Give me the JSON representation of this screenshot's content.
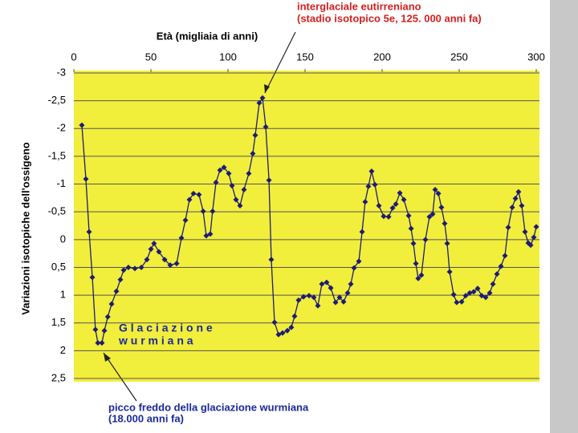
{
  "chart_data": {
    "type": "line",
    "xlabel": "Età (migliaia di anni)",
    "ylabel": "Variazioni isotopiche dell'ossigeno",
    "annotations": [
      {
        "lines": [
          "interglaciale eutirreniano",
          "(stadio isotopico 5e, 125. 000 anni fa)"
        ],
        "color": "#d42020"
      },
      {
        "lines": [
          "picco freddo della glaciazione wurmiana",
          "(18.000 anni fa)"
        ],
        "color": "#1a2a9a"
      },
      {
        "lines": [
          "G l a c i a z i o n e",
          "w u r m i a n a"
        ],
        "color": "#1a2a9a"
      }
    ],
    "x_axis_position": "top",
    "y_inverted": true,
    "xlim": [
      0,
      300
    ],
    "xticks": [
      0,
      50,
      100,
      150,
      200,
      250,
      300
    ],
    "ylim": [
      -3,
      2.5
    ],
    "yticks": [
      {
        "value": -3,
        "label": "-3"
      },
      {
        "value": -2.5,
        "label": "-2,5"
      },
      {
        "value": -2,
        "label": "-2"
      },
      {
        "value": -1.5,
        "label": "-1,5"
      },
      {
        "value": -1,
        "label": "-1"
      },
      {
        "value": -0.5,
        "label": "-0,5"
      },
      0,
      {
        "value": 0.5,
        "label": "0,5"
      },
      1,
      {
        "value": 1.5,
        "label": "1,5"
      },
      2,
      {
        "value": 2.5,
        "label": "2,5"
      }
    ],
    "grid": true,
    "background": "#f2ee3c",
    "series": [
      {
        "color": "#1c1c78",
        "x": [
          5.2,
          7.8,
          9.9,
          12,
          14,
          15.6,
          18.2,
          19.8,
          22,
          24.5,
          27.6,
          30.2,
          32.3,
          35.4,
          39.6,
          43.8,
          47.4,
          50,
          52,
          55.2,
          58.9,
          62.5,
          66.7,
          69.8,
          72.4,
          75,
          77.6,
          81.2,
          83.9,
          85.9,
          88.5,
          90,
          92.2,
          94.8,
          97.4,
          100.5,
          102.6,
          105.2,
          107.8,
          110.4,
          113.5,
          116.1,
          117.7,
          120.3,
          122.4,
          124.5,
          126.6,
          128.1,
          130.2,
          132.8,
          135.4,
          138.5,
          141.1,
          143.2,
          145.8,
          149,
          152.6,
          155.7,
          158.3,
          160.9,
          164,
          166.7,
          169.8,
          172.4,
          175,
          177.6,
          179.7,
          181.8,
          184.9,
          187,
          189,
          191.1,
          193.2,
          195.3,
          197.9,
          201,
          204.2,
          206.8,
          208.9,
          211.5,
          214.1,
          217.2,
          218.8,
          220.3,
          221.9,
          223.4,
          225.5,
          228.1,
          230.7,
          232.8,
          234.4,
          236.5,
          238.5,
          240.6,
          242.2,
          243.8,
          246.4,
          248.4,
          251.6,
          254.2,
          256.8,
          259.4,
          262,
          264.6,
          267.2,
          269.8,
          271.9,
          274.5,
          277.1,
          279.7,
          281.8,
          284.4,
          286.5,
          288.5,
          290.6,
          292.7,
          294.8,
          296.4,
          298.4,
          300
        ],
        "values": [
          -2.06,
          -1.09,
          -0.14,
          0.68,
          1.62,
          1.86,
          1.86,
          1.64,
          1.39,
          1.16,
          0.93,
          0.72,
          0.55,
          0.5,
          0.52,
          0.5,
          0.36,
          0.17,
          0.07,
          0.22,
          0.36,
          0.46,
          0.43,
          -0.03,
          -0.35,
          -0.72,
          -0.83,
          -0.81,
          -0.51,
          -0.07,
          -0.1,
          -0.51,
          -1.03,
          -1.25,
          -1.3,
          -1.19,
          -0.97,
          -0.72,
          -0.61,
          -0.9,
          -1.19,
          -1.55,
          -1.88,
          -2.46,
          -2.55,
          -2.03,
          -1.07,
          0.36,
          1.49,
          1.71,
          1.68,
          1.64,
          1.58,
          1.38,
          1.09,
          1.03,
          1.01,
          1.04,
          1.19,
          0.8,
          0.77,
          0.87,
          1.13,
          1.04,
          1.12,
          0.96,
          0.8,
          0.51,
          0.39,
          -0.14,
          -0.68,
          -0.96,
          -1.23,
          -0.99,
          -0.61,
          -0.42,
          -0.41,
          -0.57,
          -0.64,
          -0.84,
          -0.72,
          -0.43,
          -0.2,
          0.07,
          0.43,
          0.7,
          0.64,
          0,
          -0.41,
          -0.46,
          -0.9,
          -0.83,
          -0.58,
          -0.29,
          0.07,
          0.58,
          0.99,
          1.13,
          1.12,
          1.01,
          0.96,
          0.94,
          0.88,
          1.01,
          1.04,
          0.96,
          0.8,
          0.62,
          0.48,
          0.29,
          -0.22,
          -0.58,
          -0.74,
          -0.86,
          -0.61,
          -0.14,
          0.06,
          0.1,
          -0.04,
          -0.23
        ]
      }
    ]
  }
}
